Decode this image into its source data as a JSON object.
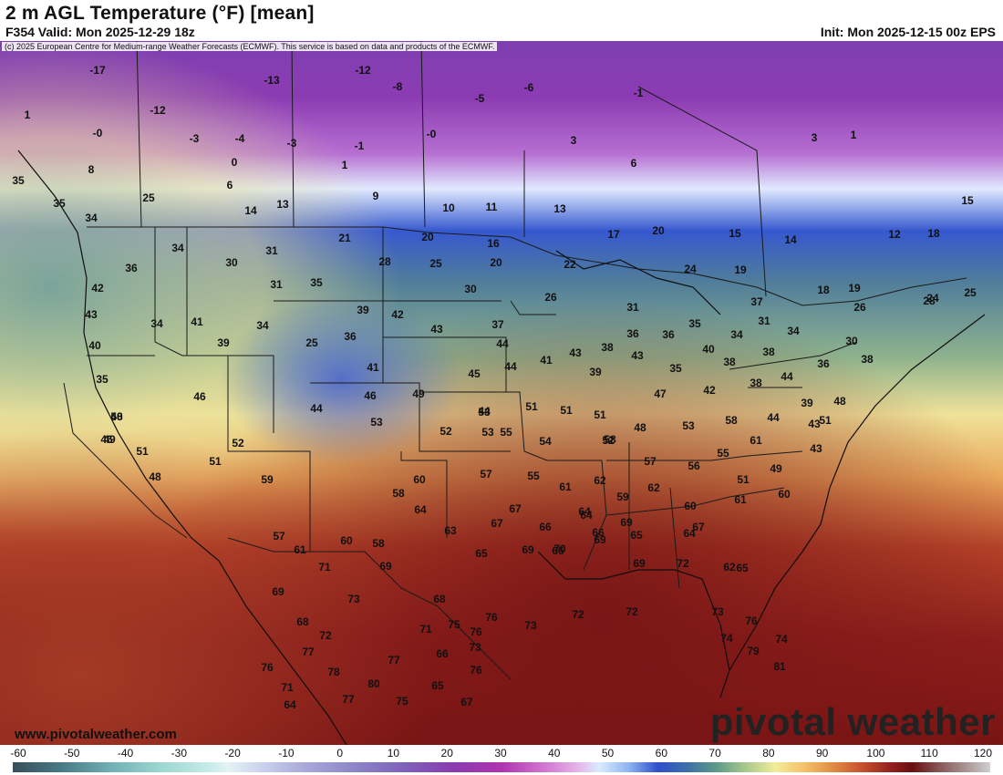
{
  "header": {
    "title": "2 m AGL Temperature (°F) [mean]",
    "valid": "F354 Valid: Mon 2025-12-29 18z",
    "init": "Init: Mon 2025-12-15 00z EPS",
    "credit": "(c) 2025 European Centre for Medium-range Weather Forecasts (ECMWF). This service is based on data and products of the ECMWF."
  },
  "watermark": {
    "url": "www.pivotalweather.com",
    "brand": "pivotal weather"
  },
  "colorbar": {
    "ticks": [
      "-60",
      "-50",
      "-40",
      "-30",
      "-20",
      "-10",
      "0",
      "10",
      "20",
      "30",
      "40",
      "50",
      "60",
      "70",
      "80",
      "90",
      "100",
      "110",
      "120"
    ]
  },
  "colors": {
    "cold_purple": "#7e3fb0",
    "freezing_blue": "#2f4fc9",
    "mild_green": "#6c9a86",
    "warm_yellow": "#f2ec9a",
    "hot_red": "#8f1f1f"
  },
  "temperature_labels": [
    "-17",
    "-13",
    "-12",
    "-12",
    "-8",
    "-6",
    "-5",
    "-1",
    "1",
    "-0",
    "-3",
    "-4",
    "-3",
    "-1",
    "-0",
    "8",
    "0",
    "1",
    "3",
    "6",
    "3",
    "1",
    "6",
    "13",
    "9",
    "10",
    "11",
    "13",
    "14",
    "25",
    "35",
    "35",
    "34",
    "34",
    "21",
    "20",
    "16",
    "17",
    "20",
    "15",
    "14",
    "12",
    "18",
    "15",
    "30",
    "31",
    "28",
    "25",
    "20",
    "22",
    "24",
    "19",
    "18",
    "19",
    "42",
    "36",
    "31",
    "35",
    "30",
    "26",
    "31",
    "37",
    "26",
    "28",
    "24",
    "25",
    "43",
    "34",
    "41",
    "34",
    "25",
    "39",
    "36",
    "42",
    "43",
    "37",
    "38",
    "36",
    "35",
    "31",
    "34",
    "30",
    "34",
    "40",
    "39",
    "44",
    "41",
    "45",
    "44",
    "43",
    "39",
    "43",
    "40",
    "36",
    "38",
    "38",
    "36",
    "38",
    "35",
    "46",
    "35",
    "41",
    "44",
    "46",
    "49",
    "48",
    "51",
    "46",
    "44",
    "47",
    "42",
    "38",
    "44",
    "39",
    "43",
    "48",
    "44",
    "51",
    "51",
    "51",
    "51",
    "53",
    "53",
    "48",
    "50",
    "49",
    "52",
    "52",
    "55",
    "58",
    "53",
    "48",
    "51",
    "53",
    "54",
    "52",
    "55",
    "43",
    "58",
    "59",
    "60",
    "57",
    "55",
    "57",
    "56",
    "51",
    "49",
    "61",
    "60",
    "62",
    "59",
    "62",
    "60",
    "61",
    "61",
    "57",
    "58",
    "64",
    "63",
    "67",
    "67",
    "64",
    "66",
    "66",
    "65",
    "64",
    "67",
    "65",
    "60",
    "58",
    "61",
    "64",
    "66",
    "65",
    "70",
    "69",
    "69",
    "69",
    "69",
    "72",
    "62",
    "69",
    "71",
    "69",
    "68",
    "73",
    "72",
    "68",
    "71",
    "76",
    "75",
    "76",
    "73",
    "72",
    "72",
    "73",
    "74",
    "76",
    "74",
    "79",
    "77",
    "73",
    "81",
    "78",
    "76",
    "76",
    "71",
    "77",
    "66",
    "64",
    "77",
    "80",
    "75",
    "65",
    "67"
  ]
}
